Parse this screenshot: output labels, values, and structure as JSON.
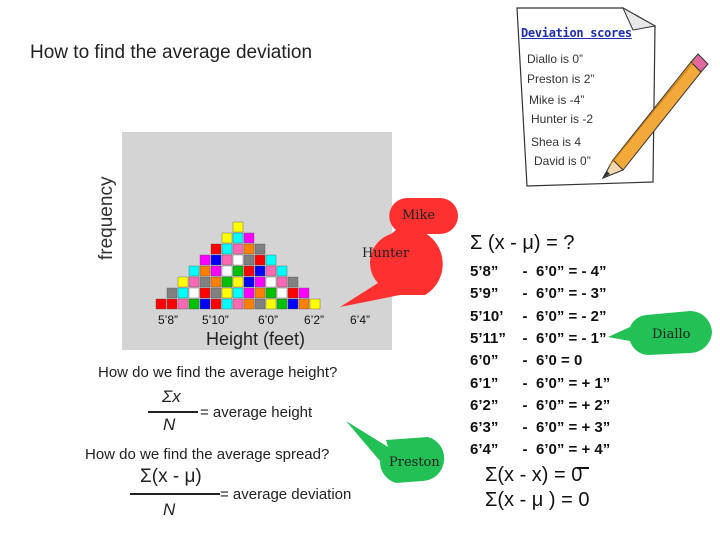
{
  "title": "How to find the average deviation",
  "note": {
    "title": "Deviation scores",
    "lines": [
      "Diallo is 0”",
      "Preston is 2”",
      "Mike is -4”",
      "Hunter is -2",
      "Shea is 4",
      "David is 0”"
    ]
  },
  "histogram": {
    "y_label": "frequency",
    "x_label": "Height (feet)",
    "x_ticks": [
      "5’8”",
      "5’10”",
      "6’0”",
      "6’2”",
      "6’4”"
    ],
    "column_heights": [
      1,
      2,
      3,
      4,
      5,
      6,
      7,
      8,
      7,
      6,
      5,
      4,
      3,
      2,
      1
    ],
    "colors": [
      "#ff0000",
      "#00c000",
      "#0000ff",
      "#ffff00",
      "#ff00ff",
      "#00ffff",
      "#ff8000",
      "#ff69b4",
      "#808080",
      "#ffffff"
    ]
  },
  "callouts": {
    "mike": "Mike",
    "hunter": "Hunter",
    "preston": "Preston",
    "diallo": "Diallo",
    "red": "#ff3030",
    "green": "#22c055"
  },
  "questions": {
    "avg_height": "How do we find the average height?",
    "avg_height_num": "Σx",
    "avg_height_den": "N",
    "avg_height_eq": "= average height",
    "avg_spread": "How do we find the average spread?",
    "avg_spread_num": "Σ(x - μ)",
    "avg_spread_den": "N",
    "avg_spread_eq": "= average deviation"
  },
  "deviation": {
    "header": "Σ (x - μ) = ?",
    "rows": [
      {
        "h": "5’8”",
        "rest": "6’0” = - 4”"
      },
      {
        "h": "5’9”",
        "rest": "6’0” = - 3”"
      },
      {
        "h": "5’10’",
        "rest": "6’0” = - 2”"
      },
      {
        "h": "5’11”",
        "rest": "6’0” = - 1”"
      },
      {
        "h": "6’0”",
        "rest": "6’0  =   0"
      },
      {
        "h": "6’1”",
        "rest": "6’0” = + 1”"
      },
      {
        "h": "6’2”",
        "rest": "6’0” = + 2”"
      },
      {
        "h": "6’3”",
        "rest": "6’0” = + 3”"
      },
      {
        "h": "6’4”",
        "rest": "6’0” = + 4”"
      }
    ],
    "minus": "-",
    "sum_xbar": "Σ(x - x) = 0",
    "sum_mu": "Σ(x - μ ) = 0"
  }
}
